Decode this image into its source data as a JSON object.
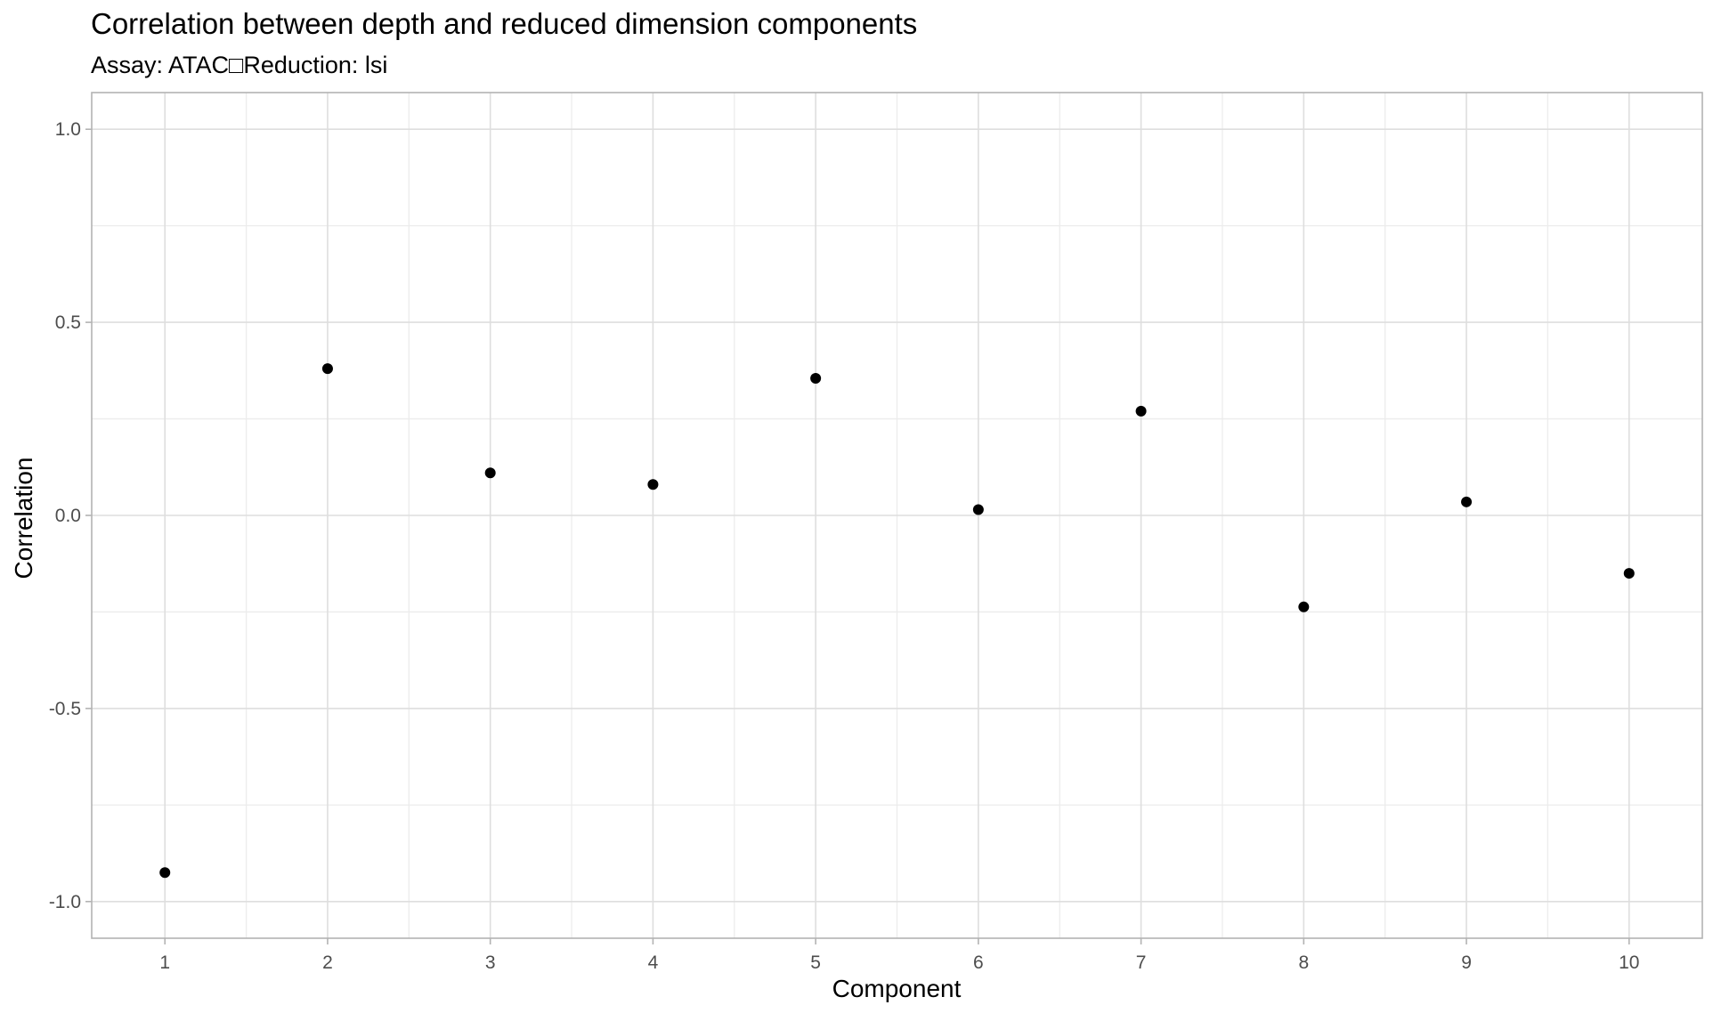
{
  "chart_data": {
    "type": "scatter",
    "title": "Correlation between depth and reduced dimension components",
    "subtitle": "Assay: ATAC□Reduction: lsi",
    "xlabel": "Component",
    "ylabel": "Correlation",
    "x": [
      1,
      2,
      3,
      4,
      5,
      6,
      7,
      8,
      9,
      10
    ],
    "y": [
      -0.925,
      0.38,
      0.11,
      0.08,
      0.355,
      0.015,
      0.27,
      -0.237,
      0.035,
      -0.15
    ],
    "xticks": [
      "1",
      "2",
      "3",
      "4",
      "5",
      "6",
      "7",
      "8",
      "9",
      "10"
    ],
    "yticks": [
      "-1.0",
      "-0.5",
      "0.0",
      "0.5",
      "1.0"
    ],
    "xlim": [
      0.55,
      10.45
    ],
    "ylim": [
      -1.095,
      1.095
    ],
    "grid": true,
    "point_color": "#000000",
    "grid_color": "#dedede",
    "border_color": "#b3b3b3"
  }
}
